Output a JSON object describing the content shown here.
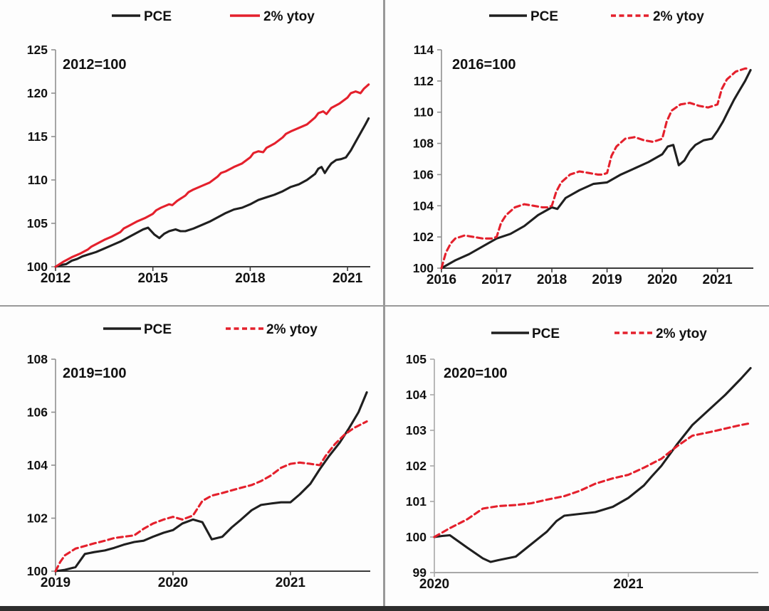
{
  "page": {
    "background": "#fdfdfd",
    "divider_color": "#999999",
    "bottom_bar_color": "#2e2e2e",
    "text_color": "#111111"
  },
  "chart_data": [
    {
      "id": "base2012",
      "type": "line",
      "annotation": "2012=100",
      "x_tick_labels": [
        "2012",
        "2015",
        "2018",
        "2021"
      ],
      "x_ticks": [
        2012,
        2015,
        2018,
        2021
      ],
      "y_ticks": [
        100,
        105,
        110,
        115,
        120,
        125
      ],
      "xlim": [
        2012,
        2021.7
      ],
      "ylim": [
        100,
        125
      ],
      "grid": false,
      "legend_position": "top",
      "y_axis_color": "#909090",
      "x_axis_color": "#3a3a3a",
      "legend": [
        {
          "label": "PCE",
          "color": "#1f1f1f",
          "dash": "solid"
        },
        {
          "label": "2% ytoy",
          "color": "#e4202c",
          "dash": "solid"
        }
      ],
      "series": [
        {
          "name": "PCE",
          "color": "#1f1f1f",
          "dash": "solid",
          "x": [
            2012,
            2012.17,
            2012.33,
            2012.5,
            2012.67,
            2012.83,
            2013,
            2013.25,
            2013.5,
            2013.75,
            2014,
            2014.25,
            2014.5,
            2014.7,
            2014.85,
            2015.05,
            2015.2,
            2015.35,
            2015.5,
            2015.7,
            2015.85,
            2016,
            2016.25,
            2016.5,
            2016.75,
            2017,
            2017.25,
            2017.5,
            2017.75,
            2018,
            2018.25,
            2018.5,
            2018.75,
            2019,
            2019.25,
            2019.5,
            2019.75,
            2020,
            2020.1,
            2020.2,
            2020.3,
            2020.4,
            2020.5,
            2020.65,
            2020.8,
            2020.95,
            2021.1,
            2021.25,
            2021.4,
            2021.55,
            2021.65
          ],
          "y": [
            100,
            100.2,
            100.3,
            100.7,
            100.9,
            101.2,
            101.4,
            101.7,
            102.1,
            102.5,
            102.9,
            103.4,
            103.9,
            104.3,
            104.5,
            103.7,
            103.3,
            103.8,
            104.1,
            104.3,
            104.1,
            104.1,
            104.4,
            104.8,
            105.2,
            105.7,
            106.2,
            106.6,
            106.8,
            107.2,
            107.7,
            108.0,
            108.3,
            108.7,
            109.2,
            109.5,
            110.0,
            110.7,
            111.3,
            111.5,
            110.8,
            111.4,
            111.9,
            112.3,
            112.4,
            112.6,
            113.4,
            114.4,
            115.4,
            116.4,
            117.1
          ]
        },
        {
          "name": "2% ytoy",
          "color": "#e4202c",
          "dash": "solid",
          "x": [
            2012,
            2012.25,
            2012.5,
            2012.75,
            2013,
            2013.1,
            2013.25,
            2013.5,
            2013.75,
            2014,
            2014.1,
            2014.25,
            2014.5,
            2014.75,
            2015,
            2015.1,
            2015.25,
            2015.5,
            2015.6,
            2015.75,
            2016,
            2016.1,
            2016.25,
            2016.5,
            2016.75,
            2017,
            2017.1,
            2017.25,
            2017.5,
            2017.75,
            2018,
            2018.1,
            2018.25,
            2018.4,
            2018.5,
            2018.75,
            2019,
            2019.1,
            2019.25,
            2019.5,
            2019.75,
            2020,
            2020.1,
            2020.25,
            2020.35,
            2020.5,
            2020.75,
            2021,
            2021.1,
            2021.25,
            2021.4,
            2021.5,
            2021.65
          ],
          "y": [
            100,
            100.6,
            101.1,
            101.5,
            102.0,
            102.3,
            102.6,
            103.1,
            103.5,
            104.0,
            104.4,
            104.7,
            105.2,
            105.6,
            106.1,
            106.5,
            106.8,
            107.2,
            107.1,
            107.6,
            108.2,
            108.6,
            108.9,
            109.3,
            109.7,
            110.4,
            110.8,
            111.0,
            111.5,
            111.9,
            112.6,
            113.1,
            113.3,
            113.2,
            113.7,
            114.2,
            114.9,
            115.3,
            115.6,
            116.0,
            116.4,
            117.2,
            117.7,
            117.9,
            117.6,
            118.3,
            118.8,
            119.5,
            120.0,
            120.2,
            120.0,
            120.5,
            121.0
          ]
        }
      ]
    },
    {
      "id": "base2016",
      "type": "line",
      "annotation": "2016=100",
      "x_tick_labels": [
        "2016",
        "2017",
        "2018",
        "2019",
        "2020",
        "2021"
      ],
      "x_ticks": [
        2016,
        2017,
        2018,
        2019,
        2020,
        2021
      ],
      "y_ticks": [
        100,
        102,
        104,
        106,
        108,
        110,
        112,
        114
      ],
      "xlim": [
        2016,
        2021.65
      ],
      "ylim": [
        100,
        114
      ],
      "grid": false,
      "legend_position": "top",
      "y_axis_color": "#909090",
      "x_axis_color": "#3a3a3a",
      "legend": [
        {
          "label": "PCE",
          "color": "#1f1f1f",
          "dash": "solid"
        },
        {
          "label": "2% ytoy",
          "color": "#e4202c",
          "dash": "dashed"
        }
      ],
      "series": [
        {
          "name": "PCE",
          "color": "#1f1f1f",
          "dash": "solid",
          "x": [
            2016,
            2016.25,
            2016.5,
            2016.75,
            2017,
            2017.25,
            2017.5,
            2017.75,
            2018,
            2018.1,
            2018.25,
            2018.5,
            2018.75,
            2019,
            2019.25,
            2019.5,
            2019.75,
            2020,
            2020.1,
            2020.2,
            2020.3,
            2020.4,
            2020.5,
            2020.6,
            2020.75,
            2020.9,
            2021,
            2021.1,
            2021.2,
            2021.3,
            2021.4,
            2021.5,
            2021.6
          ],
          "y": [
            100,
            100.5,
            100.9,
            101.4,
            101.9,
            102.2,
            102.7,
            103.4,
            103.9,
            103.8,
            104.5,
            105.0,
            105.4,
            105.5,
            106.0,
            106.4,
            106.8,
            107.3,
            107.8,
            107.9,
            106.6,
            106.9,
            107.5,
            107.9,
            108.2,
            108.3,
            108.8,
            109.4,
            110.1,
            110.8,
            111.4,
            112.0,
            112.7
          ]
        },
        {
          "name": "2% ytoy",
          "color": "#e4202c",
          "dash": "dashed",
          "x": [
            2016,
            2016.08,
            2016.17,
            2016.25,
            2016.42,
            2016.58,
            2016.75,
            2016.92,
            2017,
            2017.08,
            2017.17,
            2017.33,
            2017.5,
            2017.67,
            2017.83,
            2017.92,
            2018,
            2018.08,
            2018.17,
            2018.33,
            2018.5,
            2018.67,
            2018.83,
            2018.92,
            2019,
            2019.08,
            2019.17,
            2019.33,
            2019.5,
            2019.67,
            2019.83,
            2019.92,
            2020,
            2020.08,
            2020.17,
            2020.33,
            2020.5,
            2020.67,
            2020.83,
            2020.92,
            2021,
            2021.08,
            2021.17,
            2021.33,
            2021.5,
            2021.58
          ],
          "y": [
            100,
            101.0,
            101.6,
            101.9,
            102.1,
            102.0,
            101.9,
            101.9,
            102.0,
            102.9,
            103.4,
            103.9,
            104.1,
            104.0,
            103.9,
            103.9,
            104.0,
            104.9,
            105.5,
            106.0,
            106.2,
            106.1,
            106.0,
            106.0,
            106.1,
            107.2,
            107.8,
            108.3,
            108.4,
            108.2,
            108.1,
            108.2,
            108.3,
            109.4,
            110.1,
            110.5,
            110.6,
            110.4,
            110.3,
            110.4,
            110.5,
            111.5,
            112.1,
            112.6,
            112.8,
            112.8
          ]
        }
      ]
    },
    {
      "id": "base2019",
      "type": "line",
      "annotation": "2019=100",
      "x_tick_labels": [
        "2019",
        "2020",
        "2021"
      ],
      "x_ticks": [
        2019,
        2020,
        2021
      ],
      "y_ticks": [
        100,
        102,
        104,
        106,
        108
      ],
      "xlim": [
        2019,
        2021.68
      ],
      "ylim": [
        100,
        108
      ],
      "grid": false,
      "legend_position": "top",
      "y_axis_color": "#909090",
      "x_axis_color": "#3a3a3a",
      "legend": [
        {
          "label": "PCE",
          "color": "#1f1f1f",
          "dash": "solid"
        },
        {
          "label": "2% ytoy",
          "color": "#e4202c",
          "dash": "dashed"
        }
      ],
      "series": [
        {
          "name": "PCE",
          "color": "#1f1f1f",
          "dash": "solid",
          "x": [
            2019,
            2019.08,
            2019.17,
            2019.25,
            2019.33,
            2019.42,
            2019.5,
            2019.58,
            2019.67,
            2019.75,
            2019.83,
            2019.92,
            2020,
            2020.08,
            2020.17,
            2020.25,
            2020.33,
            2020.42,
            2020.5,
            2020.58,
            2020.67,
            2020.75,
            2020.83,
            2020.92,
            2021,
            2021.08,
            2021.17,
            2021.25,
            2021.33,
            2021.42,
            2021.5,
            2021.58,
            2021.65
          ],
          "y": [
            100,
            100.05,
            100.15,
            100.65,
            100.72,
            100.78,
            100.88,
            101.0,
            101.1,
            101.15,
            101.3,
            101.45,
            101.55,
            101.8,
            101.95,
            101.85,
            101.2,
            101.3,
            101.65,
            101.95,
            102.3,
            102.5,
            102.55,
            102.6,
            102.6,
            102.9,
            103.3,
            103.85,
            104.35,
            104.85,
            105.4,
            106.0,
            106.75
          ]
        },
        {
          "name": "2% ytoy",
          "color": "#e4202c",
          "dash": "dashed",
          "x": [
            2019,
            2019.04,
            2019.08,
            2019.17,
            2019.25,
            2019.33,
            2019.42,
            2019.5,
            2019.58,
            2019.67,
            2019.75,
            2019.83,
            2019.92,
            2020,
            2020.08,
            2020.17,
            2020.25,
            2020.33,
            2020.42,
            2020.5,
            2020.58,
            2020.67,
            2020.75,
            2020.83,
            2020.92,
            2021,
            2021.08,
            2021.17,
            2021.25,
            2021.3,
            2021.38,
            2021.46,
            2021.54,
            2021.65
          ],
          "y": [
            100,
            100.35,
            100.6,
            100.85,
            100.95,
            101.05,
            101.15,
            101.25,
            101.3,
            101.35,
            101.6,
            101.8,
            101.95,
            102.05,
            101.95,
            102.1,
            102.65,
            102.85,
            102.95,
            103.05,
            103.15,
            103.25,
            103.4,
            103.6,
            103.9,
            104.05,
            104.1,
            104.05,
            104.0,
            104.35,
            104.8,
            105.15,
            105.4,
            105.65
          ]
        }
      ]
    },
    {
      "id": "base2020",
      "type": "line",
      "annotation": "2020=100",
      "x_tick_labels": [
        "2020",
        "2021"
      ],
      "x_ticks": [
        2020,
        2021
      ],
      "y_ticks": [
        99,
        100,
        101,
        102,
        103,
        104,
        105
      ],
      "xlim": [
        2020,
        2021.67
      ],
      "ylim": [
        99,
        105
      ],
      "grid": false,
      "legend_position": "top",
      "y_axis_color": "#a8a8a8",
      "x_axis_color": "#a8a8a8",
      "legend": [
        {
          "label": "PCE",
          "color": "#1f1f1f",
          "dash": "solid"
        },
        {
          "label": "2% ytoy",
          "color": "#e4202c",
          "dash": "dashed"
        }
      ],
      "series": [
        {
          "name": "PCE",
          "color": "#1f1f1f",
          "dash": "solid",
          "x": [
            2020,
            2020.04,
            2020.08,
            2020.17,
            2020.25,
            2020.29,
            2020.33,
            2020.42,
            2020.5,
            2020.58,
            2020.63,
            2020.67,
            2020.75,
            2020.83,
            2020.92,
            2021,
            2021.08,
            2021.12,
            2021.17,
            2021.25,
            2021.33,
            2021.42,
            2021.5,
            2021.58,
            2021.63
          ],
          "y": [
            100,
            100.03,
            100.05,
            99.7,
            99.4,
            99.3,
            99.35,
            99.45,
            99.8,
            100.15,
            100.45,
            100.6,
            100.65,
            100.7,
            100.85,
            101.1,
            101.45,
            101.7,
            102.0,
            102.6,
            103.15,
            103.6,
            104.0,
            104.45,
            104.75
          ]
        },
        {
          "name": "2% ytoy",
          "color": "#e4202c",
          "dash": "dashed",
          "x": [
            2020,
            2020.08,
            2020.17,
            2020.25,
            2020.33,
            2020.42,
            2020.5,
            2020.58,
            2020.67,
            2020.75,
            2020.83,
            2020.92,
            2021,
            2021.08,
            2021.17,
            2021.25,
            2021.33,
            2021.42,
            2021.5,
            2021.58,
            2021.63
          ],
          "y": [
            100,
            100.25,
            100.5,
            100.8,
            100.87,
            100.9,
            100.95,
            101.05,
            101.15,
            101.3,
            101.5,
            101.65,
            101.75,
            101.95,
            102.2,
            102.55,
            102.85,
            102.95,
            103.05,
            103.15,
            103.2
          ]
        }
      ]
    }
  ]
}
